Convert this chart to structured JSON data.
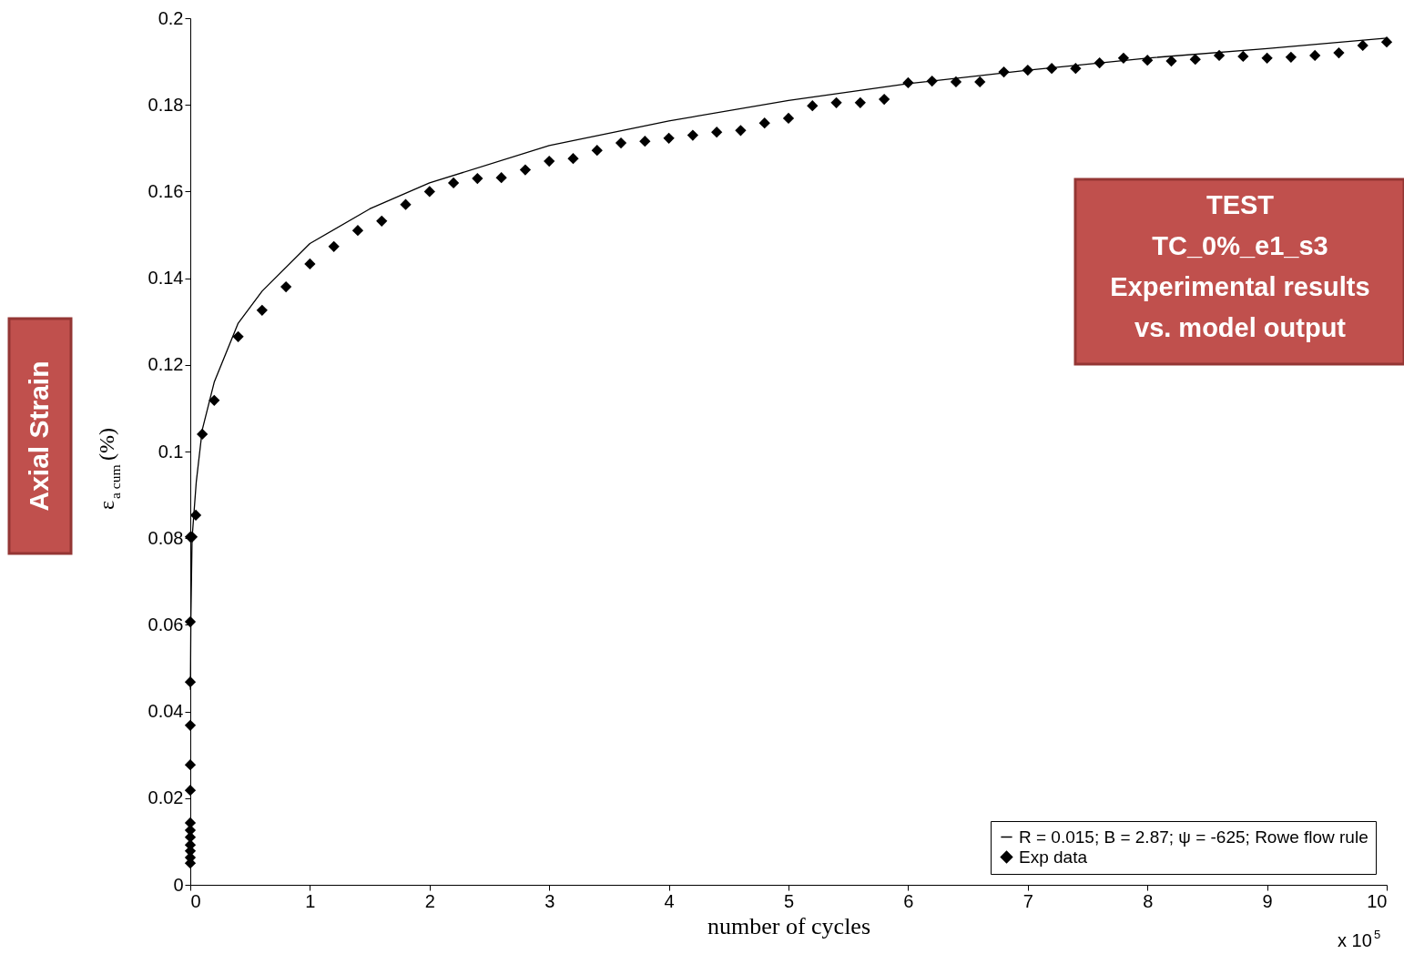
{
  "chart_data": {
    "type": "scatter",
    "xlabel": "number of cycles",
    "ylabel": "ε$_{a cum}$ (%)",
    "annotations": [
      "Axial Strain",
      "TEST\nTC_0%_e1_s3\nExperimental results\nvs. model output",
      "x 10$^{5}$"
    ],
    "xlim": [
      0,
      10
    ],
    "ylim": [
      0,
      0.2
    ],
    "xticks": [
      0,
      1,
      2,
      3,
      4,
      5,
      6,
      7,
      8,
      9,
      10
    ],
    "yticks": [
      0,
      0.02,
      0.04,
      0.06,
      0.08,
      0.1,
      0.12,
      0.14,
      0.16,
      0.18,
      0.2
    ],
    "grid": false,
    "legend": "bottom right",
    "series": [
      {
        "name": "R = 0.015; B = 2.87; ψ = -625; Rowe flow rule",
        "type": "line",
        "marker": "none",
        "line_style": "solid",
        "color": "#000000",
        "x": [
          0.001,
          0.005,
          0.015,
          0.05,
          0.1,
          0.2,
          0.4,
          0.6,
          1.0,
          1.5,
          2.0,
          3.0,
          4.0,
          5.0,
          6.0,
          7.0,
          8.0,
          9.0,
          10.0
        ],
        "values": [
          0.045,
          0.062,
          0.08,
          0.093,
          0.105,
          0.116,
          0.1296,
          0.137,
          0.148,
          0.156,
          0.162,
          0.1706,
          0.1763,
          0.181,
          0.1849,
          0.188,
          0.1908,
          0.193,
          0.1954
        ]
      },
      {
        "name": "Exp data",
        "marker": "diamond",
        "color": "#000000",
        "x": [
          0,
          0,
          0,
          0,
          0,
          0,
          0,
          0,
          0,
          0,
          0,
          0,
          0,
          0.015,
          0.046,
          0.1,
          0.2,
          0.4,
          0.6,
          0.8,
          1.0,
          1.2,
          1.4,
          1.6,
          1.8,
          2.0,
          2.2,
          2.4,
          2.6,
          2.8,
          3.0,
          3.2,
          3.4,
          3.6,
          3.8,
          4.0,
          4.2,
          4.4,
          4.6,
          4.8,
          5.0,
          5.2,
          5.4,
          5.6,
          5.8,
          6.0,
          6.2,
          6.4,
          6.6,
          6.8,
          7.0,
          7.2,
          7.4,
          7.6,
          7.8,
          8.0,
          8.2,
          8.4,
          8.6,
          8.8,
          9.0,
          9.2,
          9.4,
          9.6,
          9.8,
          10.0
        ],
        "values": [
          0.005,
          0.0063,
          0.0078,
          0.0092,
          0.011,
          0.0126,
          0.0143,
          0.0218,
          0.0277,
          0.0368,
          0.0468,
          0.0607,
          0.0803,
          0.0803,
          0.0853,
          0.104,
          0.1118,
          0.1265,
          0.1326,
          0.138,
          0.1433,
          0.1473,
          0.151,
          0.1532,
          0.157,
          0.16,
          0.162,
          0.163,
          0.1632,
          0.165,
          0.167,
          0.1676,
          0.1695,
          0.1712,
          0.1716,
          0.1723,
          0.173,
          0.1737,
          0.1741,
          0.1758,
          0.1769,
          0.1798,
          0.1805,
          0.1805,
          0.1813,
          0.1851,
          0.1855,
          0.1853,
          0.1853,
          0.1876,
          0.188,
          0.1884,
          0.1884,
          0.1897,
          0.1908,
          0.1903,
          0.1901,
          0.1905,
          0.1914,
          0.1912,
          0.1908,
          0.191,
          0.1914,
          0.192,
          0.1937,
          0.1945
        ]
      }
    ]
  }
}
